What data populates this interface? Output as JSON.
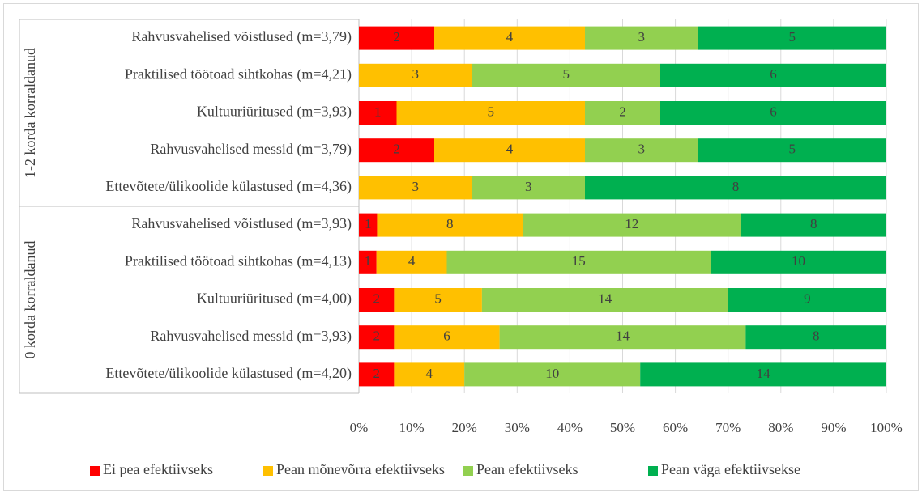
{
  "chart_data": {
    "type": "bar",
    "orientation": "horizontal",
    "stacked": "percent",
    "xlim": [
      0,
      100
    ],
    "x_ticks": [
      "0%",
      "10%",
      "20%",
      "30%",
      "40%",
      "50%",
      "60%",
      "70%",
      "80%",
      "90%",
      "100%"
    ],
    "grid": "vertical",
    "legend_position": "bottom",
    "groups": [
      {
        "label": "1-2 korda korraldanud",
        "rows": 5
      },
      {
        "label": "0 korda korraldanud",
        "rows": 5
      }
    ],
    "categories": [
      "Rahvusvahelised võistlused (m=3,79)",
      "Praktilised töötoad sihtkohas (m=4,21)",
      "Kultuuriüritused (m=3,93)",
      "Rahvusvahelised messid (m=3,79)",
      "Ettevõtete/ülikoolide külastused (m=4,36)",
      "Rahvusvahelised võistlused (m=3,93)",
      "Praktilised töötoad sihtkohas (m=4,13)",
      "Kultuuriüritused (m=4,00)",
      "Rahvusvahelised messid (m=3,93)",
      "Ettevõtete/ülikoolide külastused (m=4,20)"
    ],
    "series": [
      {
        "name": "Ei pea efektiivseks",
        "color": "#ff0000",
        "values": [
          2,
          0,
          1,
          2,
          0,
          1,
          1,
          2,
          2,
          2
        ]
      },
      {
        "name": "Pean mõnevõrra efektiivseks",
        "color": "#ffc000",
        "values": [
          4,
          3,
          5,
          4,
          3,
          8,
          4,
          5,
          6,
          4
        ]
      },
      {
        "name": "Pean efektiivseks",
        "color": "#92d050",
        "values": [
          3,
          5,
          2,
          3,
          3,
          12,
          15,
          14,
          14,
          10
        ]
      },
      {
        "name": "Pean väga efektiivsekse",
        "color": "#00b050",
        "values": [
          5,
          6,
          6,
          5,
          8,
          8,
          10,
          9,
          8,
          14
        ]
      }
    ]
  }
}
